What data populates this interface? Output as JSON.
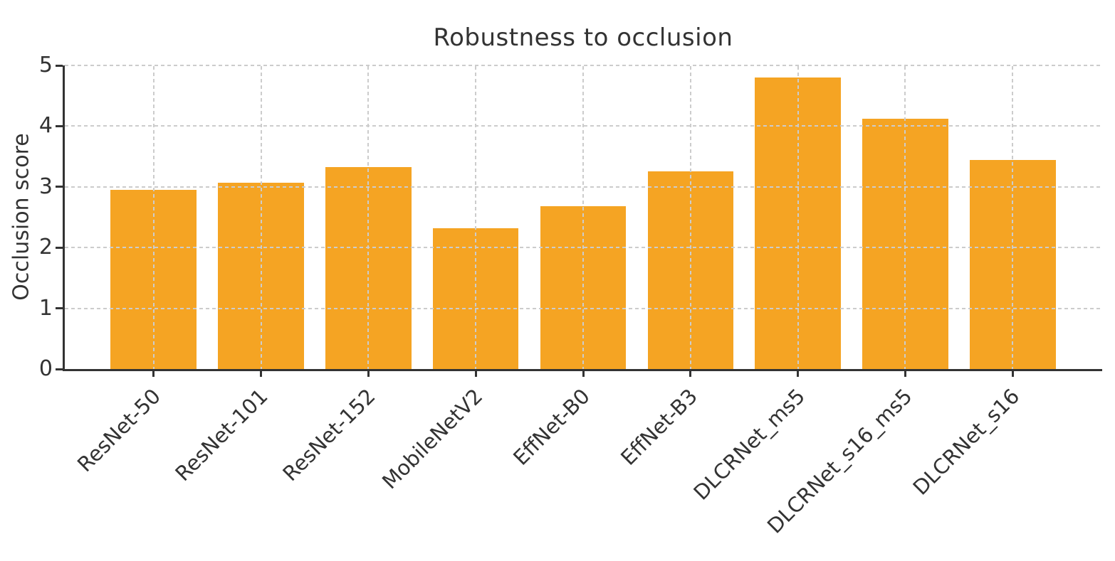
{
  "figure": {
    "background": "#ffffff"
  },
  "chart_data": {
    "type": "bar",
    "title": "Robustness to occlusion",
    "xlabel": "",
    "ylabel": "Occlusion score",
    "categories": [
      "ResNet-50",
      "ResNet-101",
      "ResNet-152",
      "MobileNetV2",
      "EffNet-B0",
      "EffNet-B3",
      "DLCRNet_ms5",
      "DLCRNet_s16_ms5",
      "DLCRNet_s16"
    ],
    "values": [
      2.95,
      3.07,
      3.33,
      2.32,
      2.68,
      3.26,
      4.8,
      4.12,
      3.44
    ],
    "ylim": [
      0,
      5
    ],
    "yticks": [
      0,
      1,
      2,
      3,
      4,
      5
    ],
    "grid": "dashed",
    "legend_position": "none",
    "colors": {
      "bar": "#F5A423",
      "axis": "#333333",
      "grid": "#cccccc",
      "text": "#333333"
    }
  }
}
